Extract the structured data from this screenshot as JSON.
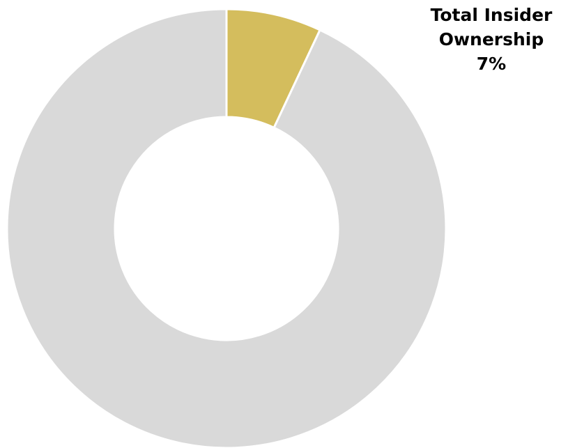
{
  "chart_data": {
    "type": "pie",
    "style": "donut",
    "slices": [
      {
        "label": "Total Insider Ownership",
        "value": 7,
        "color": "#D4BD5D"
      },
      {
        "label": "",
        "value": 93,
        "color": "#D9D9D9"
      }
    ],
    "annotation": {
      "line1": "Total Insider",
      "line2": "Ownership",
      "value_label": "7%"
    },
    "start_angle": "12 o'clock",
    "direction": "clockwise",
    "legend": "none"
  }
}
